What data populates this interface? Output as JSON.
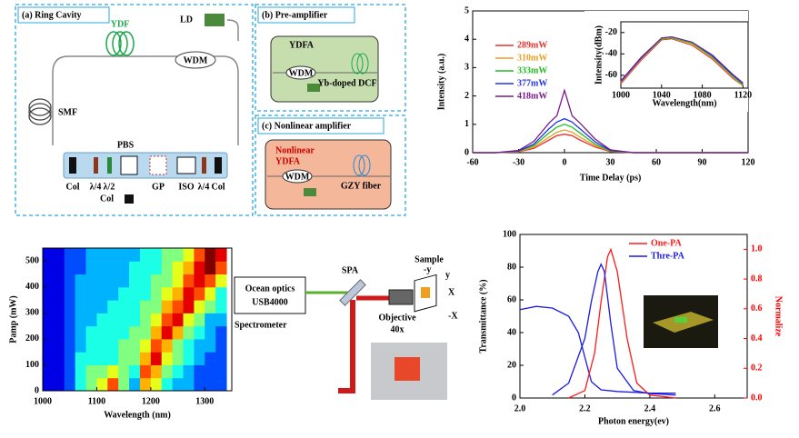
{
  "chart_data": [
    {
      "type": "line",
      "xlabel": "Time Delay (ps)",
      "ylabel": "Intensity (a.u.)",
      "x": [
        -60,
        -45,
        -30,
        -20,
        -10,
        -5,
        0,
        5,
        10,
        20,
        30,
        45,
        60,
        90,
        120
      ],
      "xlim": [
        -60,
        120
      ],
      "xticks": [
        -60,
        -30,
        0,
        30,
        60,
        90,
        120
      ],
      "ylim": [
        0,
        5
      ],
      "yticks": [
        0,
        1,
        2,
        3,
        4,
        5
      ],
      "legend": "upper left",
      "series": [
        {
          "name": "289mW",
          "color": "#e8312a",
          "values": [
            0,
            0,
            0.03,
            0.15,
            0.45,
            0.6,
            0.65,
            0.6,
            0.45,
            0.2,
            0.04,
            0,
            0,
            0,
            0
          ]
        },
        {
          "name": "310mW",
          "color": "#e8a020",
          "values": [
            0,
            0,
            0.04,
            0.2,
            0.55,
            0.72,
            0.8,
            0.72,
            0.55,
            0.25,
            0.05,
            0,
            0,
            0,
            0
          ]
        },
        {
          "name": "333mW",
          "color": "#22bb22",
          "values": [
            0,
            0,
            0.05,
            0.25,
            0.7,
            0.9,
            1.0,
            0.9,
            0.7,
            0.3,
            0.06,
            0,
            0,
            0,
            0
          ]
        },
        {
          "name": "377mW",
          "color": "#2233ee",
          "values": [
            0,
            0,
            0.06,
            0.3,
            0.85,
            1.08,
            1.2,
            1.08,
            0.85,
            0.38,
            0.08,
            0,
            0,
            0,
            0
          ]
        },
        {
          "name": "418mW",
          "color": "#7a1a8a",
          "values": [
            0,
            0,
            0.08,
            0.4,
            1.05,
            1.3,
            2.2,
            1.3,
            1.05,
            0.48,
            0.1,
            0,
            0,
            0,
            0
          ]
        }
      ],
      "inset": {
        "xlabel": "Wavelength(nm)",
        "ylabel": "Intensity(dBm)",
        "x": [
          1000,
          1020,
          1040,
          1050,
          1070,
          1090,
          1110,
          1120
        ],
        "xlim": [
          1000,
          1125
        ],
        "xticks": [
          1000,
          1040,
          1080,
          1120
        ],
        "ylim": [
          -72,
          -10
        ],
        "yticks": [
          -60,
          -40,
          -20
        ],
        "series": [
          {
            "color": "#e8312a",
            "values": [
              -68,
              -46,
              -27,
              -26,
              -32,
              -45,
              -63,
              -70
            ]
          },
          {
            "color": "#e8a020",
            "values": [
              -67,
              -45,
              -26,
              -25,
              -31,
              -44,
              -62,
              -70
            ]
          },
          {
            "color": "#22bb22",
            "values": [
              -66,
              -44,
              -26,
              -25,
              -30,
              -43,
              -61,
              -69
            ]
          },
          {
            "color": "#2233ee",
            "values": [
              -66,
              -44,
              -25,
              -24,
              -29,
              -42,
              -60,
              -68
            ]
          },
          {
            "color": "#7a1a8a",
            "values": [
              -65,
              -43,
              -25,
              -24,
              -29,
              -41,
              -59,
              -67
            ]
          }
        ]
      }
    },
    {
      "type": "heatmap",
      "xlabel": "Wavelength (nm)",
      "ylabel": "Pamp (mW)",
      "xlim": [
        1000,
        1350
      ],
      "xticks": [
        1000,
        1100,
        1200,
        1300
      ],
      "ylim": [
        0,
        550
      ],
      "yticks": [
        0,
        100,
        200,
        300,
        400,
        500
      ],
      "x": [
        1010,
        1030,
        1050,
        1070,
        1090,
        1110,
        1130,
        1150,
        1170,
        1190,
        1210,
        1230,
        1250,
        1270,
        1290,
        1310,
        1330
      ],
      "y": [
        25,
        75,
        125,
        175,
        225,
        275,
        325,
        375,
        425,
        475,
        525
      ],
      "z": [
        [
          0.1,
          0.1,
          0.2,
          0.4,
          0.5,
          0.6,
          0.8,
          0.5,
          0.3,
          0.7,
          0.6,
          0.4,
          0.3,
          0.3,
          0.2,
          0.2,
          0.2
        ],
        [
          0.1,
          0.1,
          0.2,
          0.4,
          0.5,
          0.5,
          0.6,
          0.5,
          0.4,
          0.8,
          0.7,
          0.5,
          0.4,
          0.3,
          0.2,
          0.2,
          0.2
        ],
        [
          0.1,
          0.1,
          0.2,
          0.4,
          0.4,
          0.4,
          0.4,
          0.5,
          0.5,
          0.7,
          0.9,
          0.6,
          0.5,
          0.4,
          0.3,
          0.2,
          0.2
        ],
        [
          0.1,
          0.1,
          0.2,
          0.3,
          0.4,
          0.4,
          0.4,
          0.5,
          0.5,
          0.6,
          0.8,
          0.7,
          0.5,
          0.4,
          0.3,
          0.3,
          0.2
        ],
        [
          0.1,
          0.1,
          0.2,
          0.3,
          0.4,
          0.4,
          0.4,
          0.4,
          0.5,
          0.5,
          0.7,
          0.9,
          0.7,
          0.5,
          0.4,
          0.3,
          0.2
        ],
        [
          0.1,
          0.1,
          0.2,
          0.3,
          0.3,
          0.4,
          0.4,
          0.4,
          0.4,
          0.5,
          0.6,
          0.8,
          0.9,
          0.6,
          0.5,
          0.3,
          0.3
        ],
        [
          0.1,
          0.1,
          0.2,
          0.3,
          0.3,
          0.3,
          0.4,
          0.4,
          0.4,
          0.5,
          0.5,
          0.7,
          0.8,
          0.9,
          0.6,
          0.5,
          0.4
        ],
        [
          0.1,
          0.1,
          0.2,
          0.3,
          0.3,
          0.3,
          0.3,
          0.4,
          0.4,
          0.4,
          0.5,
          0.6,
          0.7,
          0.9,
          0.8,
          0.6,
          0.4
        ],
        [
          0.1,
          0.1,
          0.2,
          0.3,
          0.3,
          0.3,
          0.3,
          0.3,
          0.4,
          0.4,
          0.5,
          0.5,
          0.6,
          0.8,
          0.9,
          0.8,
          0.6
        ],
        [
          0.1,
          0.1,
          0.2,
          0.2,
          0.3,
          0.3,
          0.3,
          0.3,
          0.4,
          0.4,
          0.4,
          0.5,
          0.6,
          0.7,
          0.9,
          1.0,
          0.8
        ],
        [
          0.1,
          0.1,
          0.2,
          0.2,
          0.3,
          0.3,
          0.3,
          0.3,
          0.3,
          0.4,
          0.4,
          0.5,
          0.5,
          0.6,
          0.8,
          1.0,
          0.9
        ]
      ]
    },
    {
      "type": "line",
      "xlabel": "Photon energy(ev)",
      "ylabel": "Transmittance (%)",
      "y2label": "Normalize",
      "xlim": [
        2.0,
        2.7
      ],
      "xticks": [
        {
          "value": 2,
          "label": "2.0"
        },
        2.2,
        2.4,
        2.6
      ],
      "ylim": [
        0,
        100
      ],
      "yticks": [
        0,
        20,
        40,
        60,
        80,
        100
      ],
      "y2lim": [
        0,
        1.1
      ],
      "y2ticks": [
        {
          "value": 0,
          "label": "0.0"
        },
        0.2,
        0.4,
        0.6,
        0.8,
        {
          "value": 1,
          "label": "1.0"
        }
      ],
      "legend": "upper right",
      "series": [
        {
          "color": "#1a1ae6",
          "x": [
            2.0,
            2.05,
            2.1,
            2.15,
            2.18,
            2.2,
            2.22,
            2.25,
            2.3,
            2.4,
            2.48
          ],
          "values": [
            54,
            56,
            55,
            50,
            40,
            25,
            10,
            5,
            4,
            3,
            3
          ]
        },
        {
          "name": "One-PA",
          "color": "#ff1a1a",
          "axis": "y2",
          "x": [
            2.15,
            2.2,
            2.23,
            2.25,
            2.27,
            2.28,
            2.3,
            2.33,
            2.36,
            2.4,
            2.48
          ],
          "values": [
            0,
            0.05,
            0.3,
            0.65,
            0.95,
            1.0,
            0.85,
            0.4,
            0.1,
            0.02,
            0
          ]
        },
        {
          "name": "Thre-PA",
          "color": "#1a1ae6",
          "axis": "y2",
          "x": [
            2.1,
            2.15,
            2.2,
            2.22,
            2.24,
            2.25,
            2.26,
            2.28,
            2.3,
            2.35,
            2.4,
            2.48
          ],
          "values": [
            0.02,
            0.1,
            0.4,
            0.65,
            0.85,
            0.9,
            0.85,
            0.5,
            0.2,
            0.05,
            0.03,
            0.02
          ]
        }
      ]
    }
  ],
  "ring_cavity": {
    "title": "(a) Ring Cavity",
    "labels": [
      "YDF",
      "LD",
      "WDM",
      "SMF",
      "PBS",
      "Col",
      "λ/4",
      "λ/2",
      "GP",
      "ISO",
      "λ/4",
      "Col",
      "Col"
    ]
  },
  "pre_amplifier": {
    "title": "(b) Pre-amplifier",
    "labels": [
      "YDFA",
      "WDM",
      "Yb-doped DCF"
    ]
  },
  "nonlinear_amplifier": {
    "title": "(c) Nonlinear amplifier",
    "labels": [
      "Nonlinear",
      "YDFA",
      "WDM",
      "GZY fiber"
    ]
  },
  "setup": {
    "labels": [
      "Ocean optics",
      "USB4000",
      "Spectrometer",
      "SPA",
      "Sample",
      "Objective",
      "40x",
      "-y",
      "y",
      "X",
      "-X"
    ]
  }
}
